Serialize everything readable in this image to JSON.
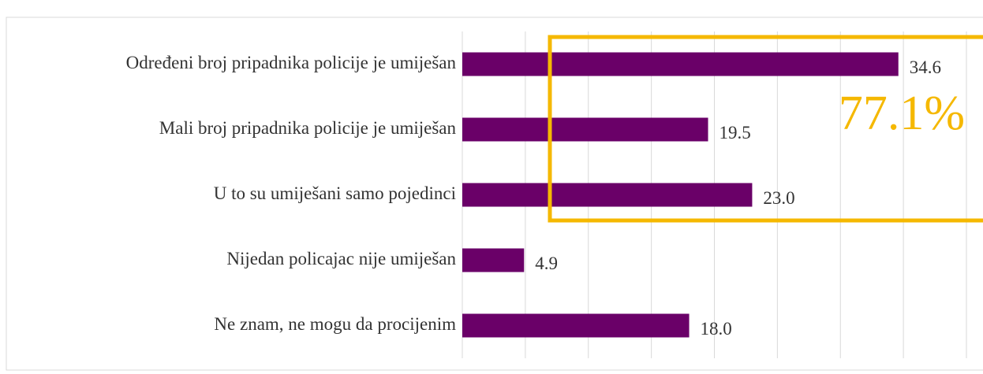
{
  "chart_data": {
    "type": "bar",
    "orientation": "horizontal",
    "categories": [
      "Određeni broj pripadnika policije je umiješan",
      "Mali broj pripadnika policije je umiješan",
      "U to su umiješani samo pojedinci",
      "Nijedan policajac nije umiješan",
      "Ne znam, ne mogu da procijenim"
    ],
    "values": [
      34.6,
      19.5,
      23.0,
      4.9,
      18.0
    ],
    "value_labels": [
      "34.6",
      "19.5",
      "23.0",
      "4.9",
      "18.0"
    ],
    "color": "#6a0068",
    "xlim": [
      0,
      40
    ],
    "xticks": [
      0,
      5,
      10,
      15,
      20,
      25,
      30,
      35,
      40
    ],
    "grid": true,
    "annotation": "77.1%"
  }
}
